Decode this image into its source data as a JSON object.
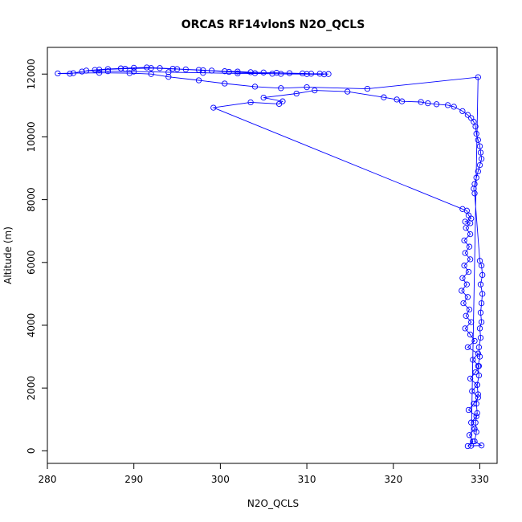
{
  "chart_data": {
    "type": "scatter",
    "title": "ORCAS RF14vlonS N2O_QCLS",
    "xlabel": "N2O_QCLS",
    "ylabel": "Altitude (m)",
    "xlim": [
      280,
      332
    ],
    "ylim": [
      -400,
      12850
    ],
    "xticks": [
      280,
      290,
      300,
      310,
      320,
      330
    ],
    "yticks": [
      0,
      2000,
      4000,
      6000,
      8000,
      10000,
      12000
    ],
    "grid": false,
    "legend": "none",
    "marker": "open-circle",
    "connected": true,
    "color": "#0000ff",
    "series": [
      {
        "points": [
          [
            328.6,
            150
          ],
          [
            329.2,
            300
          ],
          [
            328.8,
            500
          ],
          [
            329.4,
            700
          ],
          [
            329.0,
            900
          ],
          [
            329.6,
            1100
          ],
          [
            328.7,
            1300
          ],
          [
            329.3,
            1500
          ],
          [
            329.8,
            1700
          ],
          [
            329.1,
            1900
          ],
          [
            329.7,
            2100
          ],
          [
            328.9,
            2300
          ],
          [
            329.5,
            2500
          ],
          [
            329.9,
            2700
          ],
          [
            329.2,
            2900
          ],
          [
            329.8,
            3100
          ],
          [
            328.6,
            3300
          ],
          [
            329.4,
            3500
          ],
          [
            328.9,
            3700
          ],
          [
            328.3,
            3900
          ],
          [
            329.0,
            4100
          ],
          [
            328.4,
            4300
          ],
          [
            328.8,
            4500
          ],
          [
            328.1,
            4700
          ],
          [
            328.6,
            4900
          ],
          [
            327.9,
            5100
          ],
          [
            328.5,
            5300
          ],
          [
            328.0,
            5500
          ],
          [
            328.7,
            5700
          ],
          [
            328.2,
            5900
          ],
          [
            328.9,
            6100
          ],
          [
            328.3,
            6300
          ],
          [
            328.8,
            6500
          ],
          [
            328.2,
            6700
          ],
          [
            328.9,
            6900
          ],
          [
            328.4,
            7100
          ],
          [
            328.9,
            7250
          ],
          [
            328.3,
            7300
          ],
          [
            329.0,
            7400
          ],
          [
            328.7,
            7500
          ],
          [
            328.5,
            7650
          ],
          [
            328.0,
            7700
          ],
          [
            299.2,
            10930
          ],
          [
            303.5,
            11100
          ],
          [
            306.8,
            11050
          ],
          [
            307.2,
            11130
          ],
          [
            305.0,
            11250
          ],
          [
            308.8,
            11380
          ],
          [
            310.9,
            11480
          ],
          [
            314.7,
            11440
          ],
          [
            318.9,
            11260
          ],
          [
            320.4,
            11190
          ],
          [
            321.0,
            11130
          ],
          [
            323.2,
            11110
          ],
          [
            324.0,
            11070
          ],
          [
            325.0,
            11040
          ],
          [
            326.3,
            11010
          ],
          [
            327.0,
            10960
          ],
          [
            328.0,
            10820
          ],
          [
            328.6,
            10700
          ],
          [
            329.0,
            10600
          ],
          [
            329.3,
            10480
          ],
          [
            329.5,
            10330
          ],
          [
            329.6,
            10100
          ],
          [
            329.8,
            9900
          ],
          [
            330.0,
            9700
          ],
          [
            330.1,
            9500
          ],
          [
            330.2,
            9300
          ],
          [
            330.0,
            9100
          ],
          [
            329.8,
            8900
          ],
          [
            329.6,
            8700
          ],
          [
            329.4,
            8500
          ],
          [
            329.3,
            8350
          ],
          [
            329.4,
            8200
          ],
          [
            330.0,
            6050
          ],
          [
            330.2,
            5900
          ],
          [
            330.3,
            5600
          ],
          [
            330.1,
            5300
          ],
          [
            330.3,
            5000
          ],
          [
            330.2,
            4700
          ],
          [
            330.1,
            4400
          ],
          [
            330.2,
            4100
          ],
          [
            330.0,
            3900
          ],
          [
            330.1,
            3600
          ],
          [
            329.9,
            3300
          ],
          [
            330.0,
            3000
          ],
          [
            329.8,
            2700
          ],
          [
            329.9,
            2400
          ],
          [
            329.7,
            2100
          ],
          [
            329.8,
            1800
          ],
          [
            329.6,
            1500
          ],
          [
            329.7,
            1200
          ],
          [
            329.5,
            900
          ],
          [
            329.6,
            600
          ],
          [
            329.4,
            300
          ],
          [
            330.2,
            170
          ],
          [
            329.0,
            160
          ],
          [
            329.8,
            11900
          ],
          [
            317.0,
            11530
          ],
          [
            310.0,
            11580
          ],
          [
            307.0,
            11550
          ],
          [
            304.0,
            11600
          ],
          [
            300.5,
            11700
          ],
          [
            297.5,
            11800
          ],
          [
            294.0,
            11910
          ],
          [
            292.0,
            12000
          ],
          [
            289.5,
            12030
          ],
          [
            286.0,
            12040
          ],
          [
            283.0,
            12030
          ],
          [
            281.2,
            12020
          ],
          [
            282.6,
            12010
          ],
          [
            284.0,
            12080
          ],
          [
            285.5,
            12130
          ],
          [
            287.0,
            12160
          ],
          [
            288.5,
            12180
          ],
          [
            290.0,
            12200
          ],
          [
            291.5,
            12210
          ],
          [
            293.0,
            12190
          ],
          [
            294.5,
            12170
          ],
          [
            296.0,
            12150
          ],
          [
            297.5,
            12130
          ],
          [
            299.0,
            12110
          ],
          [
            300.5,
            12090
          ],
          [
            302.0,
            12080
          ],
          [
            303.5,
            12060
          ],
          [
            305.0,
            12050
          ],
          [
            306.5,
            12040
          ],
          [
            308.0,
            12030
          ],
          [
            309.5,
            12020
          ],
          [
            310.5,
            12010
          ],
          [
            311.5,
            12010
          ],
          [
            312.5,
            12000
          ],
          [
            310.0,
            12000
          ],
          [
            306.0,
            12010
          ],
          [
            302.0,
            12020
          ],
          [
            298.0,
            12040
          ],
          [
            294.0,
            12060
          ],
          [
            290.0,
            12080
          ],
          [
            287.0,
            12090
          ],
          [
            284.5,
            12110
          ],
          [
            286.0,
            12140
          ],
          [
            289.0,
            12170
          ],
          [
            292.0,
            12190
          ],
          [
            295.0,
            12160
          ],
          [
            298.0,
            12120
          ],
          [
            301.0,
            12070
          ],
          [
            304.0,
            12030
          ],
          [
            307.0,
            12005
          ],
          [
            312.0,
            11990
          ]
        ]
      }
    ]
  }
}
